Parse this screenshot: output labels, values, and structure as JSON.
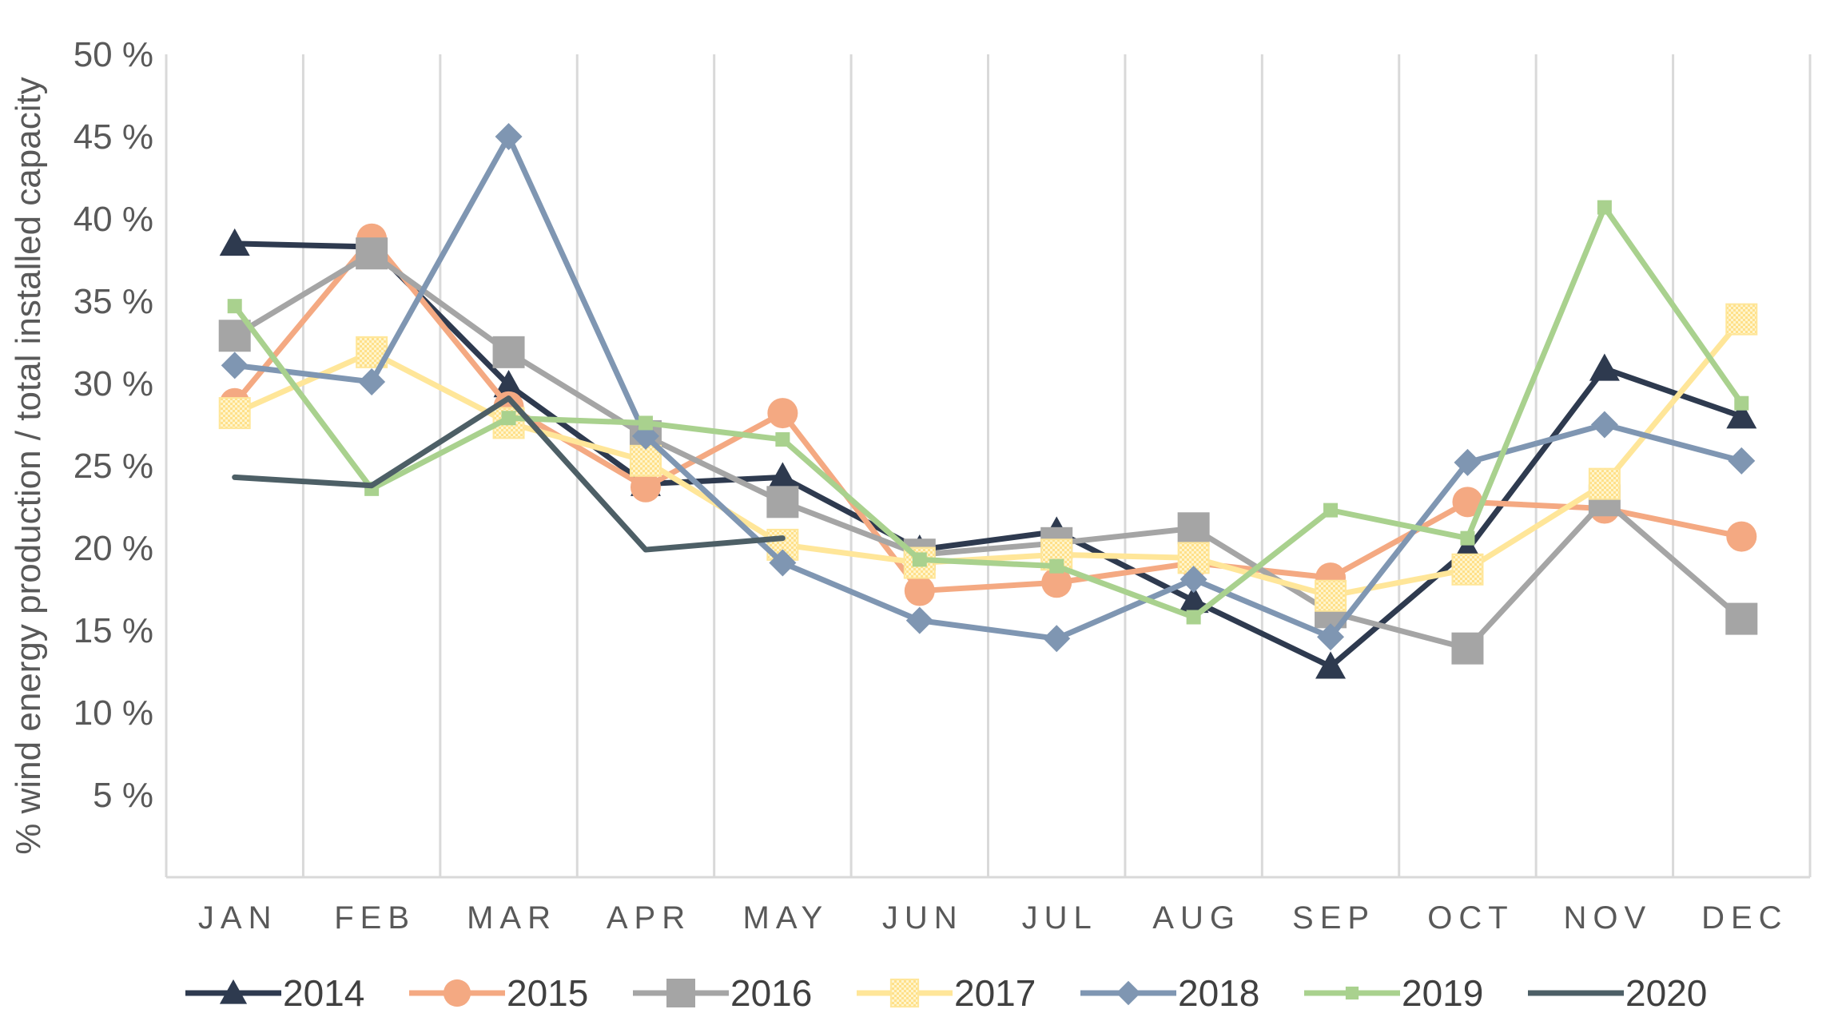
{
  "chart_data": {
    "type": "line",
    "title": "",
    "xlabel": "",
    "ylabel": "% wind energy production / total installed capacity",
    "ylim": [
      0,
      50
    ],
    "y_ticks": [
      {
        "value": 5,
        "label": "5 %"
      },
      {
        "value": 10,
        "label": "10 %"
      },
      {
        "value": 15,
        "label": "15 %"
      },
      {
        "value": 20,
        "label": "20 %"
      },
      {
        "value": 25,
        "label": "25 %"
      },
      {
        "value": 30,
        "label": "30 %"
      },
      {
        "value": 35,
        "label": "35 %"
      },
      {
        "value": 40,
        "label": "40 %"
      },
      {
        "value": 45,
        "label": "45 %"
      },
      {
        "value": 50,
        "label": "50 %"
      }
    ],
    "grid": "vertical",
    "legend_position": "bottom",
    "categories": [
      "JAN",
      "FEB",
      "MAR",
      "APR",
      "MAY",
      "JUN",
      "JUL",
      "AUG",
      "SEP",
      "OCT",
      "NOV",
      "DEC"
    ],
    "series": [
      {
        "name": "2014",
        "color": "#2E3A4F",
        "marker": "triangle",
        "values": [
          38.5,
          38.3,
          29.9,
          23.9,
          24.3,
          19.9,
          21.0,
          16.8,
          12.8,
          19.9,
          30.9,
          28.0
        ]
      },
      {
        "name": "2015",
        "color": "#F4A982",
        "marker": "circle",
        "values": [
          28.8,
          38.8,
          28.6,
          23.7,
          28.2,
          17.4,
          17.9,
          19.1,
          18.2,
          22.8,
          22.4,
          20.7
        ]
      },
      {
        "name": "2016",
        "color": "#A5A5A5",
        "marker": "square",
        "values": [
          32.9,
          37.9,
          31.9,
          26.8,
          22.8,
          19.6,
          20.3,
          21.2,
          16.1,
          13.9,
          22.9,
          15.7
        ]
      },
      {
        "name": "2017",
        "color": "#FFE699",
        "marker": "square-hatched",
        "values": [
          28.2,
          31.9,
          27.6,
          25.3,
          20.2,
          19.1,
          19.6,
          19.4,
          17.1,
          18.7,
          23.9,
          33.9
        ]
      },
      {
        "name": "2018",
        "color": "#7F96B2",
        "marker": "diamond",
        "values": [
          31.1,
          30.1,
          45.0,
          26.8,
          19.1,
          15.6,
          14.5,
          18.1,
          14.6,
          25.2,
          27.5,
          25.3
        ]
      },
      {
        "name": "2019",
        "color": "#A9D18E",
        "marker": "small-square",
        "values": [
          34.7,
          23.6,
          27.9,
          27.6,
          26.6,
          19.3,
          18.9,
          15.8,
          22.3,
          20.6,
          40.7,
          28.8
        ]
      },
      {
        "name": "2020",
        "color": "#4D5F66",
        "marker": "none",
        "values": [
          24.3,
          23.8,
          29.1,
          19.9,
          20.6,
          null,
          null,
          null,
          null,
          null,
          null,
          null
        ]
      }
    ]
  }
}
